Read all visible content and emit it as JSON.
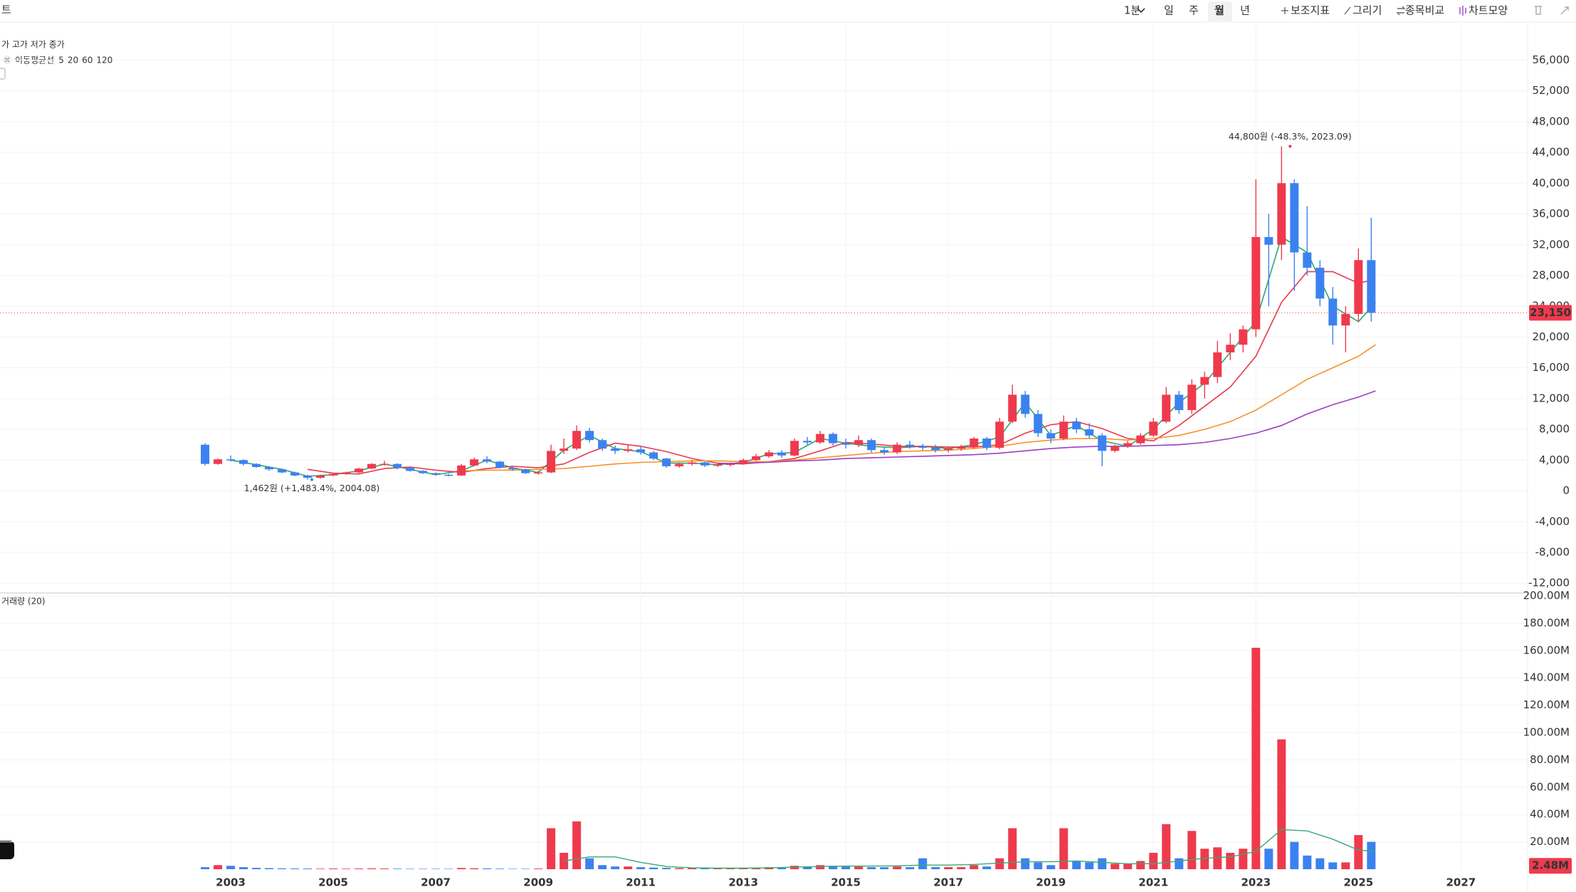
{
  "header_fragment": "트",
  "toolbar": {
    "intervals": [
      "1분",
      "일",
      "주",
      "월",
      "년"
    ],
    "selected_interval": 3,
    "tools": [
      "보조지표",
      "그리기",
      "종목비교",
      "차트모양"
    ]
  },
  "chart_data": {
    "type": "candlestick",
    "price_legend": "가 고가 저가 종가",
    "up_color": "#ef3a4d",
    "down_color": "#3b82f0",
    "x": [
      "2002.07",
      "2002.10",
      "2003.01",
      "2003.04",
      "2003.07",
      "2003.10",
      "2004.01",
      "2004.04",
      "2004.07",
      "2004.10",
      "2005.01",
      "2005.04",
      "2005.07",
      "2005.10",
      "2006.01",
      "2006.04",
      "2006.07",
      "2006.10",
      "2007.01",
      "2007.04",
      "2007.07",
      "2007.10",
      "2008.01",
      "2008.04",
      "2008.07",
      "2008.10",
      "2009.01",
      "2009.04",
      "2009.07",
      "2009.10",
      "2010.01",
      "2010.04",
      "2010.07",
      "2010.10",
      "2011.01",
      "2011.04",
      "2011.07",
      "2011.10",
      "2012.01",
      "2012.04",
      "2012.07",
      "2012.10",
      "2013.01",
      "2013.04",
      "2013.07",
      "2013.10",
      "2014.01",
      "2014.04",
      "2014.07",
      "2014.10",
      "2015.01",
      "2015.04",
      "2015.07",
      "2015.10",
      "2016.01",
      "2016.04",
      "2016.07",
      "2016.10",
      "2017.01",
      "2017.04",
      "2017.07",
      "2017.10",
      "2018.01",
      "2018.04",
      "2018.07",
      "2018.10",
      "2019.01",
      "2019.04",
      "2019.07",
      "2019.10",
      "2020.01",
      "2020.04",
      "2020.07",
      "2020.10",
      "2021.01",
      "2021.04",
      "2021.07",
      "2021.10",
      "2022.01",
      "2022.04",
      "2022.07",
      "2022.10",
      "2023.01",
      "2023.04",
      "2023.07",
      "2023.10",
      "2024.01",
      "2024.04",
      "2024.07",
      "2024.10",
      "2025.01",
      "2025.04"
    ],
    "open": [
      6000,
      3500,
      4100,
      4000,
      3500,
      3100,
      2800,
      2400,
      2000,
      1700,
      2000,
      2200,
      2400,
      2900,
      3500,
      3500,
      3000,
      2600,
      2300,
      2100,
      2000,
      3300,
      4100,
      3800,
      3000,
      2800,
      2300,
      2400,
      5200,
      5500,
      7800,
      6600,
      5500,
      5200,
      5400,
      5000,
      4200,
      3200,
      3500,
      3700,
      3300,
      3400,
      3500,
      4000,
      4500,
      5000,
      4600,
      6500,
      6300,
      7400,
      6200,
      6000,
      6600,
      5300,
      5000,
      6000,
      5800,
      5600,
      5300,
      5500,
      5700,
      6800,
      5600,
      9000,
      12500,
      10000,
      7500,
      6800,
      9000,
      8000,
      7200,
      5200,
      5800,
      6200,
      7200,
      9000,
      12500,
      10500,
      13800,
      14800,
      18000,
      19000,
      21000,
      33000,
      32000,
      40000,
      31000,
      29000,
      25000,
      21500,
      23000,
      30000
    ],
    "high": [
      6200,
      4200,
      4600,
      4100,
      3600,
      3200,
      2900,
      2500,
      2100,
      2100,
      2300,
      2500,
      3000,
      3600,
      3900,
      3600,
      3100,
      2700,
      2400,
      2200,
      3500,
      4300,
      4500,
      3900,
      3100,
      2900,
      2600,
      6000,
      6800,
      8500,
      8200,
      6800,
      5900,
      6000,
      5800,
      5200,
      4300,
      3700,
      4000,
      3800,
      3600,
      3700,
      4200,
      4800,
      5300,
      5300,
      6800,
      7000,
      7800,
      7600,
      6800,
      7200,
      6800,
      5700,
      6300,
      6500,
      6100,
      6000,
      5800,
      6000,
      7000,
      7000,
      9500,
      13800,
      13000,
      10500,
      8000,
      9800,
      9500,
      8800,
      7500,
      6000,
      6500,
      7500,
      9500,
      13500,
      13000,
      14500,
      15500,
      19500,
      20500,
      21500,
      40500,
      36000,
      44800,
      40500,
      37000,
      30000,
      26500,
      24000,
      31500,
      35500
    ],
    "low": [
      3300,
      3400,
      3800,
      3300,
      3000,
      2600,
      2300,
      1900,
      1462,
      1600,
      1900,
      2100,
      2300,
      2800,
      3300,
      2800,
      2500,
      2200,
      2000,
      1900,
      1950,
      3200,
      3600,
      2900,
      2600,
      2200,
      2100,
      2300,
      4800,
      5300,
      6300,
      5200,
      4800,
      5000,
      4700,
      4000,
      3000,
      3000,
      3300,
      3100,
      3100,
      3200,
      3400,
      3900,
      4300,
      4300,
      4500,
      6000,
      6100,
      5900,
      5500,
      5700,
      5000,
      4700,
      4800,
      5500,
      5300,
      5000,
      5000,
      5200,
      5500,
      5300,
      5400,
      8800,
      9500,
      7000,
      6200,
      6600,
      7500,
      6800,
      3200,
      5000,
      5600,
      6000,
      7000,
      8800,
      10000,
      10000,
      12000,
      14000,
      17000,
      18000,
      20000,
      24000,
      30000,
      26000,
      28000,
      24000,
      19000,
      18000,
      22000,
      22000
    ],
    "close": [
      3500,
      4100,
      4000,
      3500,
      3100,
      2800,
      2400,
      2000,
      1700,
      2000,
      2200,
      2400,
      2900,
      3500,
      3500,
      3000,
      2600,
      2300,
      2100,
      2000,
      3300,
      4100,
      3800,
      3000,
      2800,
      2300,
      2400,
      5200,
      5500,
      7800,
      6600,
      5500,
      5200,
      5400,
      5000,
      4200,
      3200,
      3500,
      3700,
      3300,
      3400,
      3500,
      4000,
      4500,
      5000,
      4600,
      6500,
      6300,
      7400,
      6200,
      6000,
      6600,
      5300,
      5000,
      6000,
      5800,
      5600,
      5300,
      5500,
      5700,
      6800,
      5600,
      9000,
      12500,
      10000,
      7500,
      6800,
      9000,
      8000,
      7200,
      5200,
      5800,
      6200,
      7200,
      9000,
      12500,
      10500,
      13800,
      14800,
      18000,
      19000,
      21000,
      33000,
      32000,
      40000,
      31000,
      29000,
      25000,
      21500,
      23000,
      30000,
      23150
    ],
    "volume": [
      1.5,
      3,
      2.5,
      1.5,
      1,
      0.8,
      0.6,
      0.5,
      0.5,
      0.4,
      0.5,
      0.4,
      0.5,
      0.6,
      0.5,
      0.4,
      0.3,
      0.3,
      0.3,
      0.3,
      0.9,
      0.7,
      0.6,
      0.4,
      0.3,
      0.3,
      0.5,
      30,
      12,
      35,
      8,
      3,
      2,
      2,
      1.5,
      1.2,
      1,
      0.8,
      0.8,
      0.6,
      0.6,
      0.6,
      0.8,
      1,
      1.5,
      1,
      2.5,
      2,
      3,
      2.5,
      2,
      2,
      1.5,
      1.5,
      2,
      1.5,
      8,
      1.5,
      1.5,
      1.5,
      3,
      2,
      8,
      30,
      8,
      5,
      3,
      30,
      6,
      5,
      8,
      4,
      4,
      6,
      12,
      33,
      8,
      28,
      15,
      16,
      12,
      15,
      162,
      15,
      95,
      20,
      10,
      8,
      5,
      5,
      25,
      20
    ],
    "xlim": [
      1998.5,
      2028.3
    ],
    "xticks": [
      2003,
      2005,
      2007,
      2009,
      2011,
      2013,
      2015,
      2017,
      2019,
      2021,
      2023,
      2025,
      2027
    ],
    "ylim": [
      -13000,
      59000
    ],
    "yticks": [
      {
        "value": -12000,
        "label": "-12,000"
      },
      {
        "value": -8000,
        "label": "-8,000"
      },
      {
        "value": -4000,
        "label": "-4,000"
      },
      0,
      {
        "value": 4000,
        "label": "4,000"
      },
      {
        "value": 8000,
        "label": "8,000"
      },
      {
        "value": 12000,
        "label": "12,000"
      },
      {
        "value": 16000,
        "label": "16,000"
      },
      {
        "value": 20000,
        "label": "20,000"
      },
      {
        "value": 24000,
        "label": "24,000"
      },
      {
        "value": 28000,
        "label": "28,000"
      },
      {
        "value": 32000,
        "label": "32,000"
      },
      {
        "value": 36000,
        "label": "36,000"
      },
      {
        "value": 40000,
        "label": "40,000"
      },
      {
        "value": 44000,
        "label": "44,000"
      },
      {
        "value": 48000,
        "label": "48,000"
      },
      {
        "value": 52000,
        "label": "52,000"
      },
      {
        "value": 56000,
        "label": "56,000"
      }
    ],
    "grid": true,
    "last_price": {
      "value": 23150,
      "label": "23,150"
    },
    "annotations": [
      {
        "text": "44,800원 (-48.3%, 2023.09)",
        "x": "2023.09",
        "value": 44800,
        "color": "#e8394a"
      },
      {
        "text": "1,462원 (+1,483.4%, 2004.08)",
        "x": "2004.08",
        "value": 1462,
        "color": "#3b82f0"
      }
    ],
    "moving_averages": {
      "label": "이동평균선",
      "x": [
        "2003.01",
        "2003.07",
        "2004.01",
        "2004.07",
        "2005.01",
        "2005.07",
        "2006.01",
        "2006.07",
        "2007.01",
        "2007.07",
        "2008.01",
        "2008.07",
        "2009.01",
        "2009.07",
        "2010.01",
        "2010.07",
        "2011.01",
        "2011.07",
        "2012.01",
        "2012.07",
        "2013.01",
        "2013.07",
        "2014.01",
        "2014.07",
        "2015.01",
        "2015.07",
        "2016.01",
        "2016.07",
        "2017.01",
        "2017.07",
        "2018.01",
        "2018.07",
        "2019.01",
        "2019.07",
        "2020.01",
        "2020.07",
        "2021.01",
        "2021.07",
        "2022.01",
        "2022.07",
        "2023.01",
        "2023.07",
        "2024.01",
        "2024.07",
        "2025.01",
        "2025.05"
      ],
      "series": [
        {
          "name": "5",
          "color": "#2ea66a",
          "values": [
            4000,
            3400,
            2800,
            1900,
            2100,
            2600,
            3500,
            2800,
            2100,
            2600,
            4000,
            3000,
            2400,
            5300,
            7200,
            5500,
            5100,
            3600,
            3600,
            3400,
            3700,
            4800,
            5000,
            6800,
            6200,
            5800,
            5600,
            5800,
            5500,
            6000,
            7000,
            11500,
            7200,
            8500,
            6500,
            5800,
            8000,
            11500,
            14000,
            18000,
            22000,
            33000,
            31000,
            24000,
            22000,
            24500
          ]
        },
        {
          "name": "20",
          "color": "#e8394a",
          "values": [
            null,
            null,
            null,
            2800,
            2300,
            2200,
            2900,
            3100,
            2700,
            2400,
            2900,
            3200,
            3000,
            3500,
            5000,
            6200,
            5800,
            5100,
            4200,
            3600,
            3500,
            3800,
            4200,
            5200,
            6300,
            6100,
            5800,
            5800,
            5700,
            5700,
            6000,
            7500,
            8600,
            9000,
            8100,
            6800,
            6500,
            8500,
            11000,
            13500,
            17500,
            24500,
            28500,
            28500,
            27000,
            27500
          ]
        },
        {
          "name": "60",
          "color": "#f5912b",
          "values": [
            null,
            null,
            null,
            null,
            null,
            null,
            null,
            null,
            null,
            2600,
            2700,
            2700,
            2800,
            2900,
            3200,
            3500,
            3700,
            3800,
            3900,
            3900,
            3800,
            3800,
            4000,
            4300,
            4600,
            4900,
            5100,
            5200,
            5300,
            5500,
            5800,
            6300,
            6600,
            6800,
            6800,
            6600,
            6800,
            7200,
            8000,
            9000,
            10500,
            12500,
            14500,
            16000,
            17500,
            19000
          ]
        },
        {
          "name": "120",
          "color": "#9b3fc4",
          "values": [
            null,
            null,
            null,
            null,
            null,
            null,
            null,
            null,
            null,
            null,
            null,
            null,
            null,
            null,
            null,
            null,
            null,
            null,
            null,
            3500,
            3600,
            3700,
            3900,
            4000,
            4200,
            4300,
            4400,
            4500,
            4600,
            4700,
            4900,
            5200,
            5500,
            5700,
            5800,
            5800,
            5900,
            6000,
            6300,
            6800,
            7500,
            8500,
            10000,
            11200,
            12200,
            13000
          ]
        }
      ]
    },
    "volume_legend": "거래량 (20)",
    "volume_ma": {
      "color": "#3aa872",
      "values": [
        null,
        null,
        null,
        null,
        null,
        null,
        null,
        null,
        null,
        null,
        null,
        null,
        null,
        6,
        9,
        9,
        5,
        2,
        1,
        0.8,
        0.8,
        1,
        1.5,
        2,
        2.3,
        2.3,
        2.5,
        3,
        3,
        3.5,
        4.5,
        5.5,
        5.5,
        6,
        5,
        4,
        4,
        6,
        8,
        9,
        13,
        29,
        28,
        22,
        14,
        13
      ]
    },
    "volume_ylim": [
      0,
      200
    ],
    "volume_yticks": [
      {
        "value": 20,
        "label": "20.00M"
      },
      {
        "value": 40,
        "label": "40.00M"
      },
      {
        "value": 60,
        "label": "60.00M"
      },
      {
        "value": 80,
        "label": "80.00M"
      },
      {
        "value": 100,
        "label": "100.00M"
      },
      {
        "value": 120,
        "label": "120.00M"
      },
      {
        "value": 140,
        "label": "140.00M"
      },
      {
        "value": 160,
        "label": "160.00M"
      },
      {
        "value": 180,
        "label": "180.00M"
      },
      {
        "value": 200,
        "label": "200.00M"
      }
    ],
    "volume_badge": {
      "value": 2.48,
      "label": "2.48M"
    }
  }
}
